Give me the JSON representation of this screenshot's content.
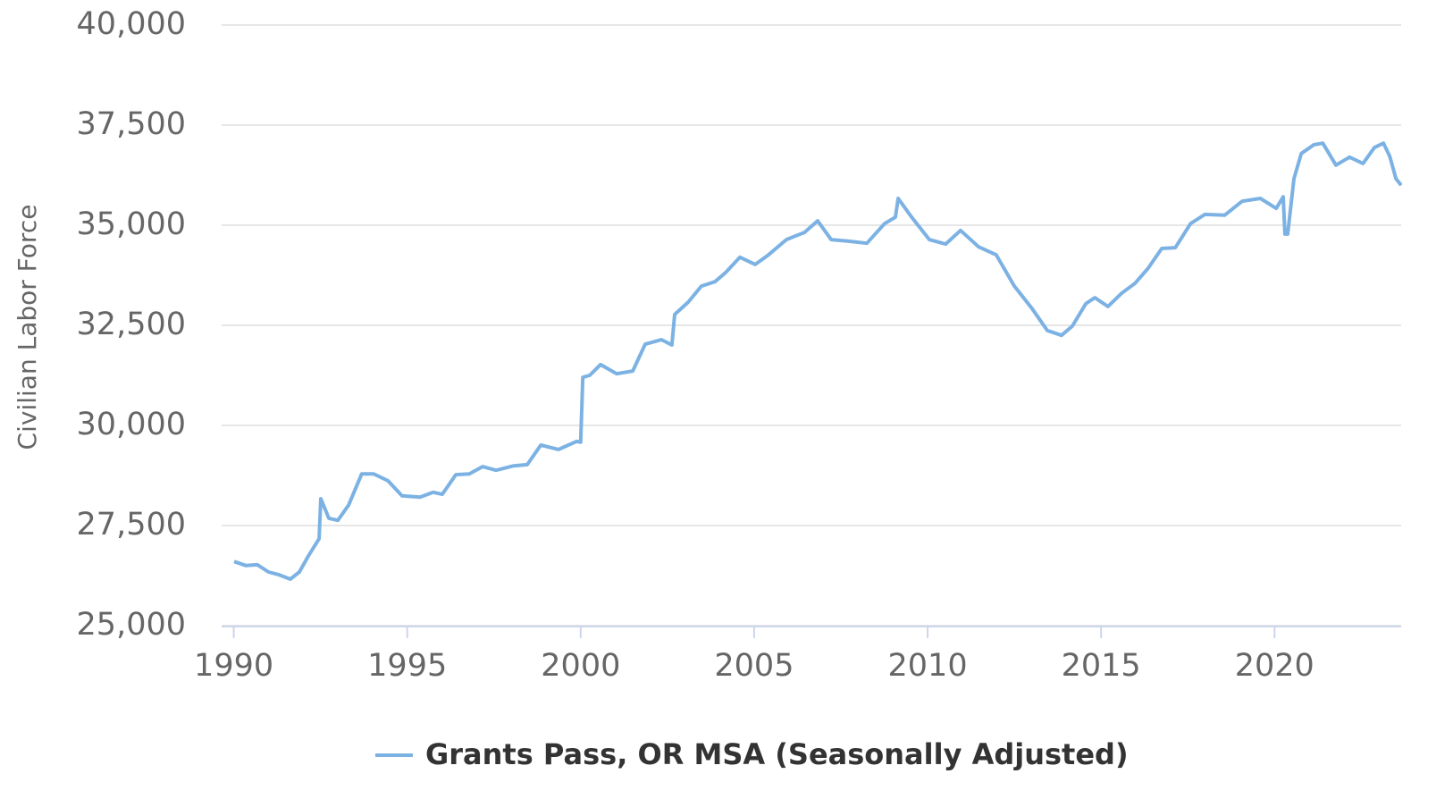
{
  "chart_data": {
    "type": "line",
    "y_label": "Civilian Labor Force",
    "x": [
      1990.01,
      1990.35,
      1990.68,
      1991.0,
      1991.3,
      1991.63,
      1991.89,
      1992.15,
      1992.46,
      1992.51,
      1992.74,
      1993.0,
      1993.31,
      1993.69,
      1994.03,
      1994.44,
      1994.85,
      1995.37,
      1995.75,
      1996.01,
      1996.4,
      1996.79,
      1997.17,
      1997.56,
      1998.07,
      1998.46,
      1998.85,
      1999.36,
      1999.88,
      2000.0,
      2000.06,
      2000.26,
      2000.57,
      2001.04,
      2001.5,
      2001.86,
      2002.33,
      2002.63,
      2002.71,
      2003.1,
      2003.48,
      2003.87,
      2004.18,
      2004.59,
      2005.03,
      2005.41,
      2005.93,
      2006.45,
      2006.83,
      2007.22,
      2007.73,
      2008.25,
      2008.76,
      2009.07,
      2009.15,
      2009.54,
      2010.05,
      2010.52,
      2010.95,
      2011.47,
      2011.98,
      2012.5,
      2013.01,
      2013.45,
      2013.86,
      2014.17,
      2014.56,
      2014.82,
      2015.2,
      2015.59,
      2015.98,
      2016.36,
      2016.75,
      2017.14,
      2017.58,
      2017.99,
      2018.56,
      2019.07,
      2019.59,
      2020.05,
      2020.25,
      2020.3,
      2020.38,
      2020.56,
      2020.77,
      2021.13,
      2021.39,
      2021.77,
      2022.16,
      2022.55,
      2022.88,
      2023.14,
      2023.32,
      2023.5,
      2023.65
    ],
    "series": [
      {
        "name": "Grants Pass, OR MSA (Seasonally Adjusted)",
        "color": "#7cb2e3",
        "values": [
          26600,
          26500,
          26520,
          26340,
          26270,
          26160,
          26340,
          26740,
          27170,
          28170,
          27680,
          27630,
          28010,
          28790,
          28790,
          28620,
          28240,
          28210,
          28330,
          28280,
          28770,
          28790,
          28970,
          28880,
          28990,
          29020,
          29510,
          29400,
          29600,
          29580,
          31200,
          31250,
          31520,
          31290,
          31360,
          32030,
          32140,
          32010,
          32770,
          33080,
          33480,
          33590,
          33820,
          34200,
          34020,
          34260,
          34640,
          34820,
          35110,
          34640,
          34600,
          34550,
          35040,
          35200,
          35670,
          35200,
          34640,
          34530,
          34870,
          34460,
          34260,
          33480,
          32920,
          32370,
          32250,
          32480,
          33040,
          33190,
          32970,
          33300,
          33550,
          33930,
          34420,
          34440,
          35040,
          35270,
          35250,
          35600,
          35670,
          35420,
          35710,
          34780,
          34780,
          36160,
          36790,
          37010,
          37050,
          36500,
          36700,
          36540,
          36940,
          37050,
          36720,
          36160,
          36000
        ]
      }
    ],
    "xlim": [
      1989.65,
      2023.65
    ],
    "xticks": [
      1990,
      1995,
      2000,
      2005,
      2010,
      2015,
      2020
    ],
    "ylim": [
      25000,
      40000
    ],
    "yticks": [
      {
        "value": 25000,
        "label": "25,000"
      },
      {
        "value": 27500,
        "label": "27,500"
      },
      {
        "value": 30000,
        "label": "30,000"
      },
      {
        "value": 32500,
        "label": "32,500"
      },
      {
        "value": 35000,
        "label": "35,000"
      },
      {
        "value": 37500,
        "label": "37,500"
      },
      {
        "value": 40000,
        "label": "40,000"
      }
    ],
    "grid": true
  }
}
